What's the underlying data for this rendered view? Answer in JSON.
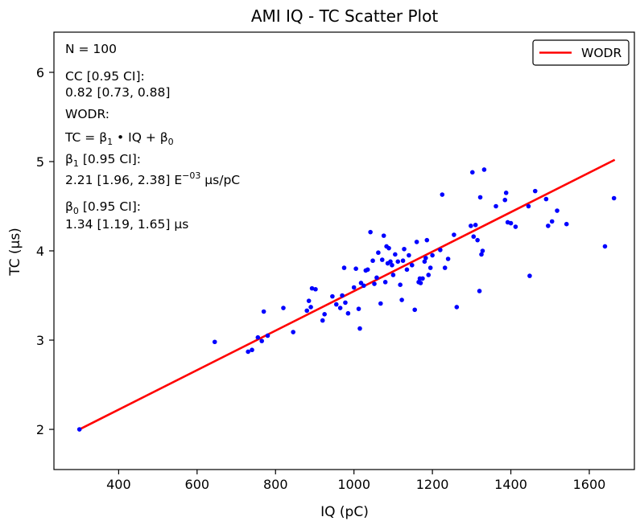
{
  "chart_data": {
    "type": "scatter",
    "title": "AMI IQ - TC Scatter Plot",
    "xlabel": "IQ (pC)",
    "ylabel": "TC (µs)",
    "xlim": [
      235,
      1715
    ],
    "ylim": [
      1.55,
      6.45
    ],
    "xticks": [
      400,
      600,
      800,
      1000,
      1200,
      1400,
      1600
    ],
    "yticks": [
      2,
      3,
      4,
      5,
      6
    ],
    "grid": false,
    "legend_position": "top-right",
    "colors": {
      "points": "#0000ff",
      "fit_line": "#ff0000"
    },
    "annotations": {
      "n": "N = 100",
      "cc_label": "CC [0.95 CI]:",
      "cc_value": "0.82 [0.73, 0.88]",
      "wodr_label": "WODR:",
      "eq_prefix": "TC = β",
      "eq_sub1": "1",
      "eq_mid": " • IQ + β",
      "eq_sub0": "0",
      "b1_label_pre": "β",
      "b1_label_sub": "1",
      "b1_label_post": " [0.95 CI]:",
      "b1_value_pre": "2.21 [1.96, 2.38] E",
      "b1_value_sup": "−03",
      "b1_value_post": " µs/pC",
      "b0_label_pre": "β",
      "b0_label_sub": "0",
      "b0_label_post": " [0.95 CI]:",
      "b0_value": "1.34 [1.19, 1.65] µs"
    },
    "series": [
      {
        "name": "WODR",
        "kind": "line",
        "points": [
          [
            300,
            2.0
          ],
          [
            1665,
            5.02
          ]
        ]
      },
      {
        "kind": "scatter",
        "points": [
          [
            300,
            2.0
          ],
          [
            645,
            2.98
          ],
          [
            730,
            2.87
          ],
          [
            740,
            2.89
          ],
          [
            755,
            3.03
          ],
          [
            765,
            2.99
          ],
          [
            770,
            3.32
          ],
          [
            780,
            3.05
          ],
          [
            820,
            3.36
          ],
          [
            845,
            3.09
          ],
          [
            880,
            3.33
          ],
          [
            885,
            3.44
          ],
          [
            890,
            3.37
          ],
          [
            893,
            3.58
          ],
          [
            902,
            3.57
          ],
          [
            920,
            3.22
          ],
          [
            925,
            3.29
          ],
          [
            945,
            3.49
          ],
          [
            955,
            3.4
          ],
          [
            965,
            3.36
          ],
          [
            970,
            3.5
          ],
          [
            975,
            3.81
          ],
          [
            978,
            3.42
          ],
          [
            985,
            3.3
          ],
          [
            1000,
            3.59
          ],
          [
            1005,
            3.8
          ],
          [
            1012,
            3.35
          ],
          [
            1015,
            3.13
          ],
          [
            1018,
            3.64
          ],
          [
            1025,
            3.61
          ],
          [
            1030,
            3.78
          ],
          [
            1035,
            3.79
          ],
          [
            1042,
            4.21
          ],
          [
            1048,
            3.89
          ],
          [
            1052,
            3.63
          ],
          [
            1058,
            3.7
          ],
          [
            1062,
            3.98
          ],
          [
            1068,
            3.41
          ],
          [
            1072,
            3.9
          ],
          [
            1076,
            4.17
          ],
          [
            1080,
            3.65
          ],
          [
            1083,
            4.05
          ],
          [
            1086,
            3.86
          ],
          [
            1089,
            4.03
          ],
          [
            1093,
            3.88
          ],
          [
            1097,
            3.84
          ],
          [
            1100,
            3.73
          ],
          [
            1105,
            3.96
          ],
          [
            1112,
            3.88
          ],
          [
            1118,
            3.62
          ],
          [
            1122,
            3.45
          ],
          [
            1125,
            3.89
          ],
          [
            1128,
            4.02
          ],
          [
            1135,
            3.79
          ],
          [
            1140,
            3.95
          ],
          [
            1148,
            3.84
          ],
          [
            1155,
            3.34
          ],
          [
            1160,
            4.1
          ],
          [
            1165,
            3.65
          ],
          [
            1168,
            3.69
          ],
          [
            1175,
            3.69
          ],
          [
            1180,
            3.88
          ],
          [
            1183,
            3.92
          ],
          [
            1186,
            4.12
          ],
          [
            1190,
            3.73
          ],
          [
            1195,
            3.81
          ],
          [
            1200,
            3.95
          ],
          [
            1220,
            4.01
          ],
          [
            1225,
            4.63
          ],
          [
            1232,
            3.81
          ],
          [
            1240,
            3.91
          ],
          [
            1255,
            4.18
          ],
          [
            1262,
            3.37
          ],
          [
            1298,
            4.28
          ],
          [
            1302,
            4.88
          ],
          [
            1305,
            4.16
          ],
          [
            1310,
            4.29
          ],
          [
            1315,
            4.12
          ],
          [
            1320,
            3.55
          ],
          [
            1322,
            4.6
          ],
          [
            1325,
            3.96
          ],
          [
            1328,
            4.0
          ],
          [
            1332,
            4.91
          ],
          [
            1362,
            4.5
          ],
          [
            1385,
            4.57
          ],
          [
            1388,
            4.65
          ],
          [
            1392,
            4.32
          ],
          [
            1400,
            4.31
          ],
          [
            1412,
            4.27
          ],
          [
            1445,
            4.5
          ],
          [
            1448,
            3.72
          ],
          [
            1462,
            4.67
          ],
          [
            1490,
            4.58
          ],
          [
            1495,
            4.28
          ],
          [
            1505,
            4.33
          ],
          [
            1518,
            4.45
          ],
          [
            1542,
            4.3
          ],
          [
            1640,
            4.05
          ],
          [
            1663,
            4.59
          ],
          [
            1170,
            3.64
          ]
        ]
      }
    ]
  }
}
